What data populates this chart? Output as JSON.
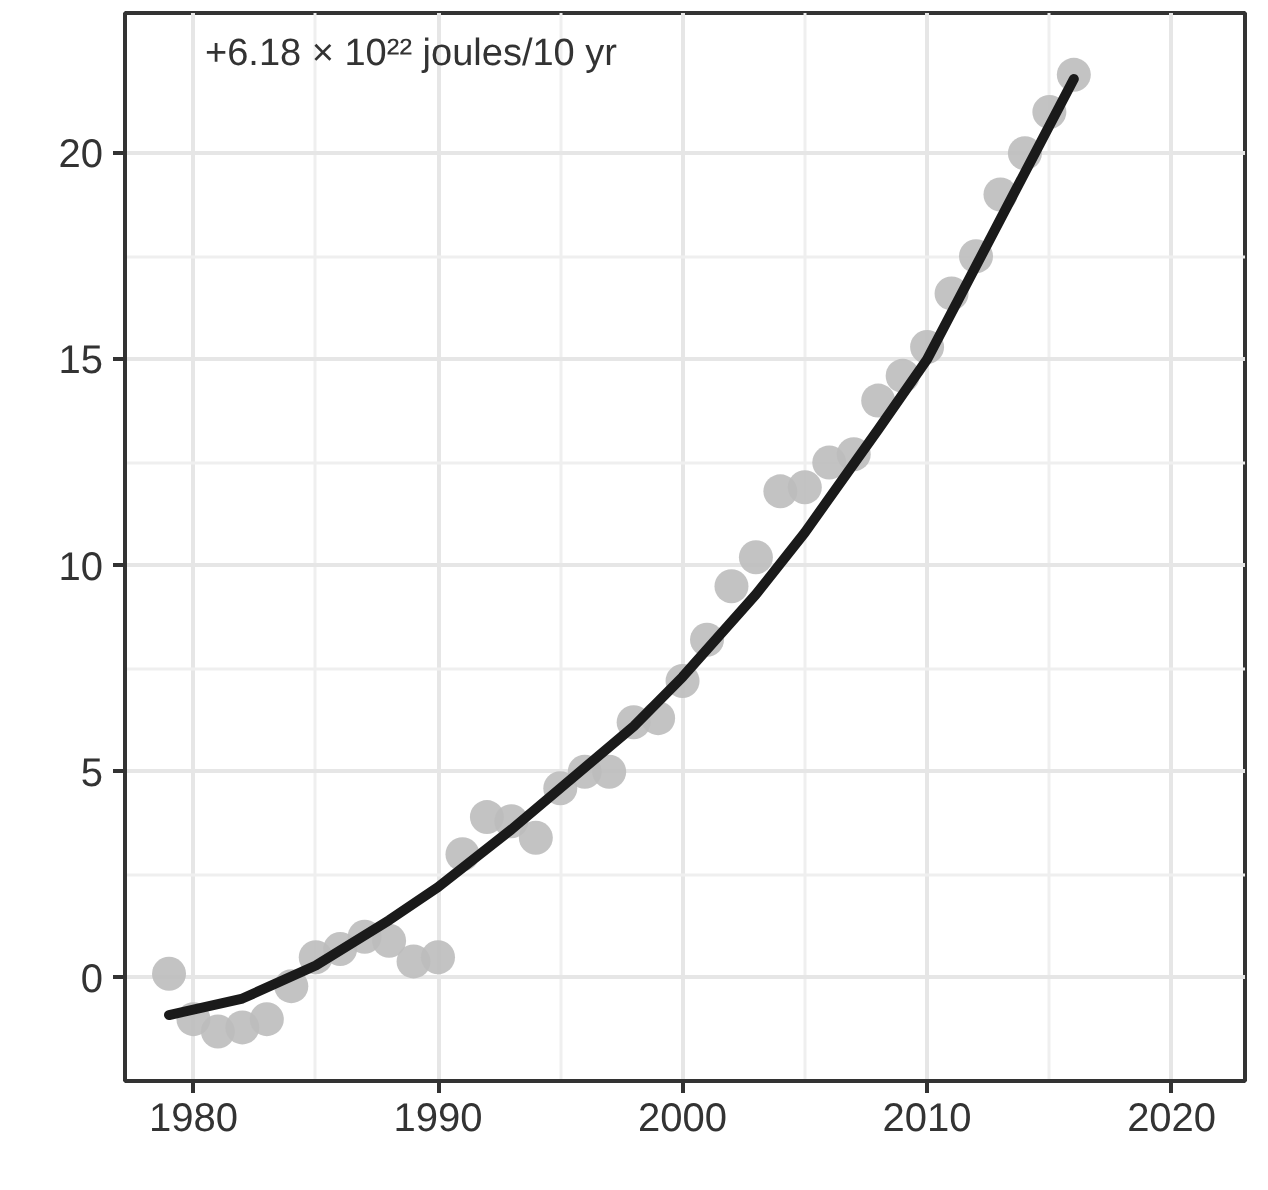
{
  "chart_data": {
    "type": "scatter",
    "annotations": [
      "+6.18 × 10²² joules/10 yr"
    ],
    "x": [
      1979,
      1980,
      1981,
      1982,
      1983,
      1984,
      1985,
      1986,
      1987,
      1988,
      1989,
      1990,
      1991,
      1992,
      1993,
      1994,
      1995,
      1996,
      1997,
      1998,
      1999,
      2000,
      2001,
      2002,
      2003,
      2004,
      2005,
      2006,
      2007,
      2008,
      2009,
      2010,
      2011,
      2012,
      2013,
      2014,
      2015,
      2016
    ],
    "series": [
      {
        "color": "#bdbdbd",
        "marker": "circle",
        "values": [
          0.1,
          -1.0,
          -1.3,
          -1.2,
          -1.0,
          -0.2,
          0.5,
          0.7,
          1.0,
          0.9,
          0.4,
          0.5,
          3.0,
          3.9,
          3.8,
          3.4,
          4.6,
          5.0,
          5.0,
          6.2,
          6.3,
          7.2,
          8.2,
          9.5,
          10.2,
          11.8,
          11.9,
          12.5,
          12.7,
          14.0,
          14.6,
          15.3,
          16.6,
          17.5,
          19.0,
          20.0,
          21.0,
          21.9
        ]
      },
      {
        "type": "line",
        "color": "#1a1a1a",
        "line_style": "solid",
        "x": [
          1979,
          1982,
          1985,
          1988,
          1990,
          1993,
          1995,
          1998,
          2000,
          2003,
          2005,
          2008,
          2010,
          2013,
          2016
        ],
        "values": [
          -0.9,
          -0.5,
          0.3,
          1.4,
          2.2,
          3.6,
          4.6,
          6.1,
          7.3,
          9.3,
          10.8,
          13.3,
          15.0,
          18.4,
          21.8
        ]
      }
    ],
    "xlim": [
      1977.2,
      2023.0
    ],
    "ylim": [
      -2.5,
      23.4
    ],
    "xticks": [
      1980,
      1990,
      2000,
      2010,
      2020
    ],
    "yticks": [
      0,
      5,
      10,
      15,
      20
    ],
    "grid": true
  }
}
